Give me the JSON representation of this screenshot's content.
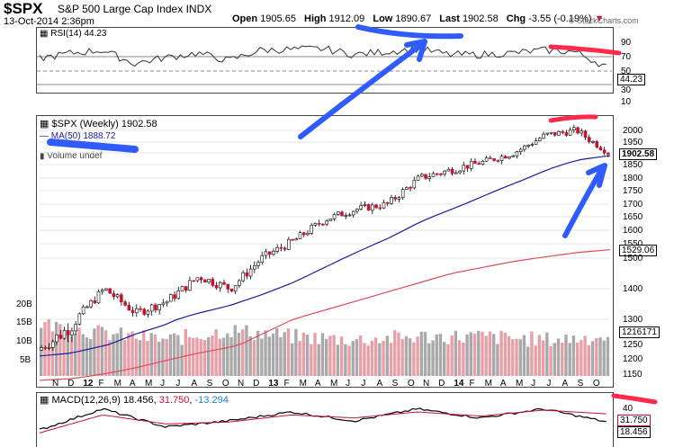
{
  "header": {
    "symbol": "$SPX",
    "name": "S&P 500 Large Cap Index",
    "exchange": "INDX",
    "date": "13-Oct-2014 2:36pm",
    "open_label": "Open",
    "open": "1905.65",
    "high_label": "High",
    "high": "1912.09",
    "low_label": "Low",
    "low": "1890.67",
    "last_label": "Last",
    "last": "1902.58",
    "chg_label": "Chg",
    "chg": "-3.55 (-0.19%)",
    "brand": "© StockCharts.com"
  },
  "rsi": {
    "legend": "RSI(14) 44.23",
    "value_box": "44.23",
    "ticks": [
      "90",
      "70",
      "50",
      "30",
      "10"
    ]
  },
  "main": {
    "legend_price": "$SPX (Weekly) 1902.58",
    "legend_ma": "MA(50) 1888.72",
    "legend_volume": "Volume undef",
    "price_box": "1902.58",
    "ma_box": "1529.06",
    "vol_box": "1216171",
    "price_ticks": [
      "2000",
      "1950",
      "1900",
      "1850",
      "1800",
      "1750",
      "1700",
      "1650",
      "1600",
      "1550",
      "1500",
      "1400",
      "1300",
      "1250",
      "1200",
      "1150"
    ],
    "vol_ticks": [
      "20B",
      "15B",
      "10B",
      "5B"
    ],
    "x_labels": [
      "N",
      "D",
      "12",
      "F",
      "M",
      "A",
      "M",
      "J",
      "J",
      "A",
      "S",
      "O",
      "N",
      "D",
      "13",
      "F",
      "M",
      "A",
      "M",
      "J",
      "J",
      "A",
      "S",
      "O",
      "N",
      "D",
      "14",
      "F",
      "M",
      "A",
      "M",
      "J",
      "J",
      "A",
      "S",
      "O"
    ]
  },
  "macd": {
    "legend_name": "MACD(12,26,9)",
    "legend_v1": "18.456",
    "legend_v2": "31.750",
    "legend_v3": "-13.294",
    "tick": "40",
    "box_signal": "31.750",
    "box_macd": "18.456"
  },
  "colors": {
    "up": "#ffffff",
    "down": "#c8102e",
    "ma50": "#1b1b9e",
    "ma200": "#e04a5a",
    "vol_gray": "#a9a9a9",
    "vol_pink": "#e8a0a8",
    "annot_red": "#ff2a4a",
    "annot_blue": "#2f5bff"
  },
  "chart_data": [
    {
      "type": "line",
      "title": "RSI(14)",
      "ylim": [
        10,
        90
      ],
      "x": [
        "Nov 2011",
        "Jan 2012",
        "Mar 2012",
        "May 2012",
        "Jul 2012",
        "Sep 2012",
        "Nov 2012",
        "Jan 2013",
        "Mar 2013",
        "May 2013",
        "Jul 2013",
        "Sep 2013",
        "Nov 2013",
        "Jan 2014",
        "Mar 2014",
        "May 2014",
        "Jul 2014",
        "Sep 2014",
        "Oct 2014"
      ],
      "series": [
        {
          "name": "RSI(14)",
          "values": [
            55,
            62,
            66,
            48,
            56,
            62,
            52,
            66,
            67,
            68,
            60,
            64,
            68,
            60,
            60,
            62,
            66,
            64,
            44
          ]
        }
      ],
      "reference_lines": [
        70,
        50,
        30
      ]
    },
    {
      "type": "candlestick",
      "title": "$SPX (Weekly)",
      "ylim": [
        1130,
        2050
      ],
      "x": [
        "Nov 2011",
        "Jan 2012",
        "Mar 2012",
        "May 2012",
        "Jul 2012",
        "Sep 2012",
        "Nov 2012",
        "Jan 2013",
        "Mar 2013",
        "May 2013",
        "Jul 2013",
        "Sep 2013",
        "Nov 2013",
        "Jan 2014",
        "Mar 2014",
        "May 2014",
        "Jul 2014",
        "Sep 2014",
        "Oct 2014"
      ],
      "series": [
        {
          "name": "$SPX",
          "values": [
            1240,
            1290,
            1400,
            1320,
            1360,
            1440,
            1400,
            1500,
            1560,
            1640,
            1680,
            1700,
            1800,
            1830,
            1860,
            1900,
            1980,
            2000,
            1902.58
          ]
        },
        {
          "name": "MA(50)",
          "values": [
            1210,
            1220,
            1245,
            1270,
            1290,
            1320,
            1345,
            1380,
            1420,
            1470,
            1520,
            1570,
            1630,
            1680,
            1730,
            1780,
            1830,
            1870,
            1888.72
          ]
        },
        {
          "name": "MA(200)",
          "values": [
            1130,
            1135,
            1150,
            1170,
            1195,
            1220,
            1240,
            1270,
            1300,
            1330,
            1360,
            1390,
            1420,
            1450,
            1470,
            1490,
            1505,
            1520,
            1529.06
          ]
        }
      ]
    },
    {
      "type": "bar",
      "title": "Volume",
      "ylim": [
        0,
        22
      ],
      "x": [
        "Nov 2011",
        "Mar 2012",
        "Jul 2012",
        "Nov 2012",
        "Mar 2013",
        "Jul 2013",
        "Nov 2013",
        "Mar 2014",
        "Jul 2014",
        "Oct 2014"
      ],
      "series": [
        {
          "name": "Volume (B)",
          "values": [
            16,
            13,
            11,
            14,
            12,
            11,
            12,
            12,
            11,
            12
          ]
        }
      ]
    },
    {
      "type": "line",
      "title": "MACD(12,26,9)",
      "x": [
        "Nov 2011",
        "Mar 2012",
        "Jul 2012",
        "Nov 2012",
        "Mar 2013",
        "Jul 2013",
        "Nov 2013",
        "Mar 2014",
        "Jul 2014",
        "Oct 2014"
      ],
      "series": [
        {
          "name": "MACD",
          "values": [
            5,
            40,
            10,
            20,
            35,
            20,
            40,
            25,
            40,
            18.456
          ]
        },
        {
          "name": "Signal",
          "values": [
            0,
            30,
            15,
            18,
            30,
            25,
            35,
            28,
            38,
            31.75
          ]
        }
      ]
    }
  ]
}
